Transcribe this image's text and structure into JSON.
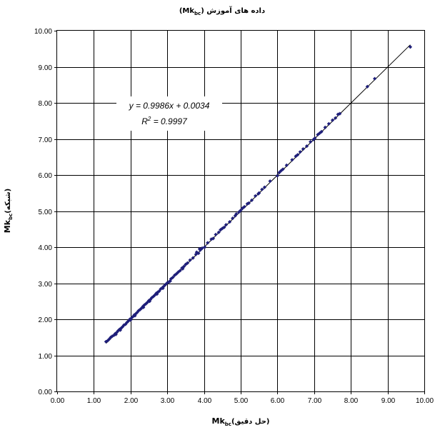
{
  "chart_data": {
    "type": "scatter",
    "title": "(Mk",
    "title_sub": "bc",
    "title_rtl": ") داده های آموزش",
    "xlabel_prefix": "Mk",
    "xlabel_sub": "bc",
    "xlabel_rest": "(حل دقیق)",
    "ylabel_prefix": "Mk",
    "ylabel_sub": "bc",
    "ylabel_rest": "(شبکه)",
    "xlim": [
      0,
      10
    ],
    "ylim": [
      0,
      10
    ],
    "x_ticks": [
      "0.00",
      "1.00",
      "2.00",
      "3.00",
      "4.00",
      "5.00",
      "6.00",
      "7.00",
      "8.00",
      "9.00",
      "10.00"
    ],
    "y_ticks": [
      "0.00",
      "1.00",
      "2.00",
      "3.00",
      "4.00",
      "5.00",
      "6.00",
      "7.00",
      "8.00",
      "9.00",
      "10.00"
    ],
    "grid": true,
    "marker_color": "#1f1f7a",
    "trendline": {
      "slope": 0.9986,
      "intercept": 0.0034,
      "x_range": [
        1.33,
        9.62
      ]
    },
    "equation_text": "y = 0.9986x + 0.0034",
    "r2_label": "R",
    "r2_exp": "2",
    "r2_value": " = 0.9997",
    "points": [
      [
        1.33,
        1.38
      ],
      [
        1.38,
        1.41
      ],
      [
        1.42,
        1.45
      ],
      [
        1.46,
        1.5
      ],
      [
        1.5,
        1.53
      ],
      [
        1.55,
        1.56
      ],
      [
        1.58,
        1.6
      ],
      [
        1.62,
        1.63
      ],
      [
        1.66,
        1.68
      ],
      [
        1.7,
        1.72
      ],
      [
        1.74,
        1.75
      ],
      [
        1.78,
        1.79
      ],
      [
        1.82,
        1.84
      ],
      [
        1.86,
        1.86
      ],
      [
        1.9,
        1.91
      ],
      [
        1.94,
        1.95
      ],
      [
        1.98,
        2.0
      ],
      [
        2.02,
        2.03
      ],
      [
        2.06,
        2.07
      ],
      [
        2.1,
        2.12
      ],
      [
        2.14,
        2.15
      ],
      [
        2.18,
        2.19
      ],
      [
        2.22,
        2.24
      ],
      [
        2.26,
        2.27
      ],
      [
        2.3,
        2.31
      ],
      [
        2.34,
        2.36
      ],
      [
        2.38,
        2.4
      ],
      [
        2.42,
        2.43
      ],
      [
        2.46,
        2.47
      ],
      [
        2.5,
        2.52
      ],
      [
        2.54,
        2.55
      ],
      [
        2.58,
        2.6
      ],
      [
        2.62,
        2.63
      ],
      [
        2.66,
        2.67
      ],
      [
        2.7,
        2.72
      ],
      [
        2.74,
        2.75
      ],
      [
        2.78,
        2.78
      ],
      [
        2.82,
        2.84
      ],
      [
        2.86,
        2.87
      ],
      [
        2.9,
        2.91
      ],
      [
        2.95,
        2.96
      ],
      [
        3.0,
        3.01
      ],
      [
        3.05,
        3.04
      ],
      [
        3.1,
        3.12
      ],
      [
        3.15,
        3.16
      ],
      [
        3.2,
        3.22
      ],
      [
        3.25,
        3.26
      ],
      [
        3.3,
        3.31
      ],
      [
        3.35,
        3.35
      ],
      [
        3.4,
        3.42
      ],
      [
        3.45,
        3.46
      ],
      [
        3.5,
        3.52
      ],
      [
        3.55,
        3.56
      ],
      [
        3.62,
        3.64
      ],
      [
        3.7,
        3.7
      ],
      [
        3.78,
        3.8
      ],
      [
        3.85,
        3.83
      ],
      [
        3.9,
        3.92
      ],
      [
        3.95,
        3.97
      ],
      [
        4.02,
        4.0
      ],
      [
        4.1,
        4.12
      ],
      [
        4.2,
        4.22
      ],
      [
        4.32,
        4.35
      ],
      [
        4.4,
        4.41
      ],
      [
        4.45,
        4.48
      ],
      [
        4.5,
        4.52
      ],
      [
        4.6,
        4.62
      ],
      [
        4.7,
        4.7
      ],
      [
        4.78,
        4.8
      ],
      [
        4.85,
        4.87
      ],
      [
        4.95,
        4.97
      ],
      [
        5.0,
        5.02
      ],
      [
        5.05,
        5.08
      ],
      [
        5.1,
        5.12
      ],
      [
        5.18,
        5.2
      ],
      [
        5.3,
        5.3
      ],
      [
        5.4,
        5.42
      ],
      [
        5.5,
        5.5
      ],
      [
        5.58,
        5.6
      ],
      [
        5.65,
        5.66
      ],
      [
        5.8,
        5.83
      ],
      [
        6.05,
        6.07
      ],
      [
        6.1,
        6.12
      ],
      [
        6.15,
        6.16
      ],
      [
        6.25,
        6.27
      ],
      [
        6.4,
        6.42
      ],
      [
        6.5,
        6.52
      ],
      [
        6.55,
        6.56
      ],
      [
        6.62,
        6.64
      ],
      [
        6.7,
        6.72
      ],
      [
        6.8,
        6.8
      ],
      [
        6.9,
        6.92
      ],
      [
        6.98,
        6.98
      ],
      [
        7.02,
        7.02
      ],
      [
        7.1,
        7.12
      ],
      [
        7.15,
        7.16
      ],
      [
        7.2,
        7.2
      ],
      [
        7.3,
        7.32
      ],
      [
        7.4,
        7.42
      ],
      [
        7.5,
        7.52
      ],
      [
        7.58,
        7.58
      ],
      [
        7.65,
        7.68
      ],
      [
        7.7,
        7.7
      ],
      [
        8.45,
        8.45
      ],
      [
        8.65,
        8.67
      ],
      [
        9.62,
        9.55
      ],
      [
        1.6,
        1.58
      ],
      [
        1.72,
        1.7
      ],
      [
        2.0,
        1.98
      ],
      [
        2.12,
        2.1
      ],
      [
        2.35,
        2.33
      ],
      [
        2.52,
        2.5
      ],
      [
        2.72,
        2.7
      ],
      [
        2.88,
        2.86
      ],
      [
        3.08,
        3.06
      ],
      [
        3.42,
        3.4
      ],
      [
        3.8,
        3.86
      ],
      [
        3.88,
        3.95
      ],
      [
        4.25,
        4.24
      ],
      [
        4.55,
        4.55
      ],
      [
        4.88,
        4.92
      ],
      [
        5.22,
        5.22
      ],
      [
        5.48,
        5.48
      ],
      [
        6.0,
        5.98
      ]
    ]
  }
}
